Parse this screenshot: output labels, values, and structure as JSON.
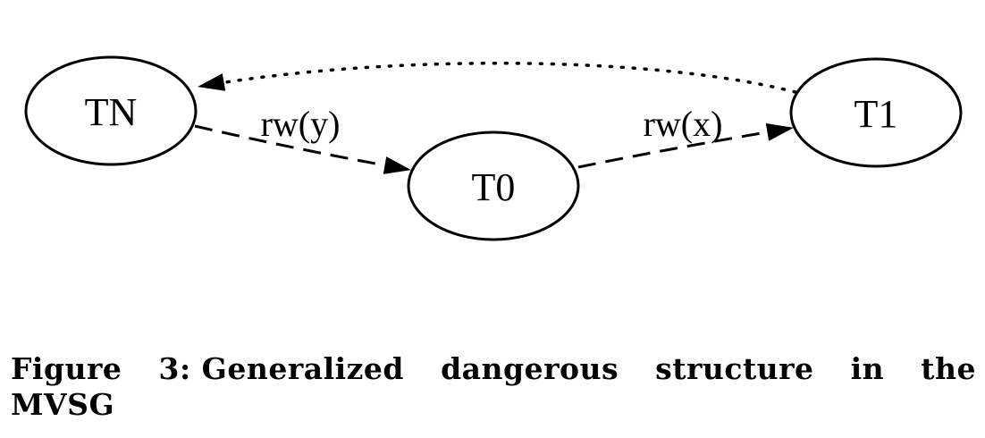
{
  "diagram": {
    "nodes": [
      {
        "id": "TN",
        "label": "TN"
      },
      {
        "id": "T0",
        "label": "T0"
      },
      {
        "id": "T1",
        "label": "T1"
      }
    ],
    "edges": [
      {
        "from": "TN",
        "to": "T0",
        "label": "rw(y)",
        "style": "dashed"
      },
      {
        "from": "T0",
        "to": "T1",
        "label": "rw(x)",
        "style": "dashed"
      },
      {
        "from": "T1",
        "to": "TN",
        "label": "",
        "style": "dotted"
      }
    ]
  },
  "caption": {
    "figure_label": "Figure 3:",
    "text": "Generalized dangerous structure in the MVSG"
  }
}
